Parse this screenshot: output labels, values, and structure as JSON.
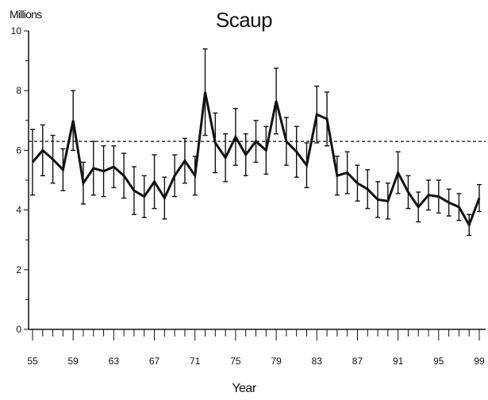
{
  "chart_data": {
    "type": "line",
    "title": "Scaup",
    "ylabel": "Millions",
    "xlabel": "Year",
    "ylim": [
      0,
      10
    ],
    "xlim": [
      1955,
      1999
    ],
    "x_tick_labels": [
      "55",
      "59",
      "63",
      "67",
      "71",
      "75",
      "79",
      "83",
      "87",
      "91",
      "95",
      "99"
    ],
    "y_tick_labels": [
      "0",
      "2",
      "4",
      "6",
      "8",
      "10"
    ],
    "reference_line": {
      "value": 6.3,
      "style": "dashed"
    },
    "series": [
      {
        "x": [
          1955,
          1956,
          1957,
          1958,
          1959,
          1960,
          1961,
          1962,
          1963,
          1964,
          1965,
          1966,
          1967,
          1968,
          1969,
          1970,
          1971,
          1972,
          1973,
          1974,
          1975,
          1976,
          1977,
          1978,
          1979,
          1980,
          1981,
          1982,
          1983,
          1984,
          1985,
          1986,
          1987,
          1988,
          1989,
          1990,
          1991,
          1992,
          1993,
          1994,
          1995,
          1996,
          1997,
          1998,
          1999
        ],
        "values": [
          5.6,
          6.0,
          5.7,
          5.35,
          7.0,
          4.9,
          5.4,
          5.3,
          5.45,
          5.15,
          4.65,
          4.45,
          4.95,
          4.4,
          5.15,
          5.65,
          5.15,
          7.95,
          6.25,
          5.75,
          6.45,
          5.85,
          6.3,
          6.0,
          7.65,
          6.3,
          5.95,
          5.5,
          7.2,
          7.05,
          5.15,
          5.25,
          4.9,
          4.7,
          4.35,
          4.3,
          5.25,
          4.6,
          4.1,
          4.5,
          4.45,
          4.25,
          4.1,
          3.5,
          4.4
        ],
        "error": [
          1.1,
          0.85,
          0.8,
          0.7,
          1.0,
          0.7,
          0.9,
          0.85,
          0.7,
          0.75,
          0.8,
          0.7,
          0.9,
          0.7,
          0.7,
          0.75,
          0.65,
          1.45,
          1.0,
          0.8,
          0.95,
          0.7,
          0.7,
          0.8,
          1.1,
          0.8,
          0.85,
          0.75,
          0.95,
          0.9,
          0.65,
          0.7,
          0.6,
          0.65,
          0.6,
          0.6,
          0.7,
          0.55,
          0.5,
          0.5,
          0.55,
          0.45,
          0.45,
          0.35,
          0.45
        ]
      }
    ]
  }
}
